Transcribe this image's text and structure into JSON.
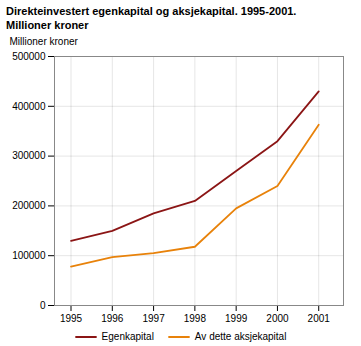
{
  "chart_data": {
    "type": "line",
    "title": "Direkteinvestert egenkapital og aksjekapital. 1995-2001.",
    "subtitle": "Millioner kroner",
    "ylabel": "Millioner kroner",
    "x": [
      1995,
      1996,
      1997,
      1998,
      1999,
      2000,
      2001
    ],
    "series": [
      {
        "name": "Egenkapital",
        "color": "#8B1515",
        "values": [
          130000,
          150000,
          185000,
          210000,
          270000,
          330000,
          430000
        ]
      },
      {
        "name": "Av dette aksjekapital",
        "color": "#E8820A",
        "values": [
          78000,
          97000,
          105000,
          118000,
          195000,
          240000,
          363000
        ]
      }
    ],
    "xlim": [
      1994.6,
      2001.6
    ],
    "xticks": [
      1995,
      1996,
      1997,
      1998,
      1999,
      2000,
      2001
    ],
    "ylim": [
      0,
      500000
    ],
    "yticks": [
      0,
      100000,
      200000,
      300000,
      400000,
      500000
    ],
    "grid": true,
    "legend": "bottom"
  }
}
